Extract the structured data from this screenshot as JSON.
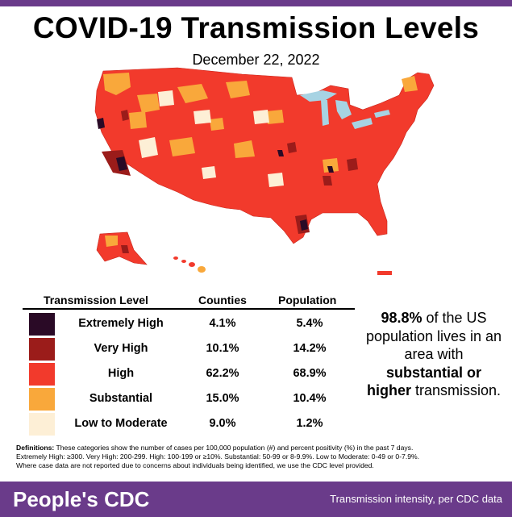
{
  "title": "COVID-19 Transmission Levels",
  "date": "December 22, 2022",
  "legend": {
    "headers": {
      "level": "Transmission Level",
      "counties": "Counties",
      "population": "Population"
    },
    "rows": [
      {
        "label": "Extremely High",
        "counties": "4.1%",
        "population": "5.4%",
        "color": "#2a0a26"
      },
      {
        "label": "Very High",
        "counties": "10.1%",
        "population": "14.2%",
        "color": "#9b1c1a"
      },
      {
        "label": "High",
        "counties": "62.2%",
        "population": "68.9%",
        "color": "#f23a2c"
      },
      {
        "label": "Substantial",
        "counties": "15.0%",
        "population": "10.4%",
        "color": "#f9a83b"
      },
      {
        "label": "Low to Moderate",
        "counties": "9.0%",
        "population": "1.2%",
        "color": "#fdefd6"
      }
    ]
  },
  "callout": {
    "pct": "98.8%",
    "text1": " of the US population lives in an area with ",
    "bold": "substantial or higher",
    "text2": " transmission."
  },
  "definitions": {
    "label": "Definitions:",
    "line1": " These categories show the number of cases per 100,000 population (#) and percent positivity (%) in the past 7 days.",
    "line2": "Extremely High: ≥300. Very High: 200-299. High: 100-199 or ≥10%. Substantial: 50-99 or 8-9.9%. Low to Moderate: 0-49 or 0-7.9%.",
    "line3": "Where case data are not reported due to concerns about individuals being identified, we use the CDC level provided."
  },
  "footer": {
    "brand": "People's CDC",
    "note": "Transmission intensity, per CDC data"
  },
  "colors": {
    "purple": "#6a3b8a",
    "high": "#f23a2c",
    "lake": "#a7d3e3"
  }
}
